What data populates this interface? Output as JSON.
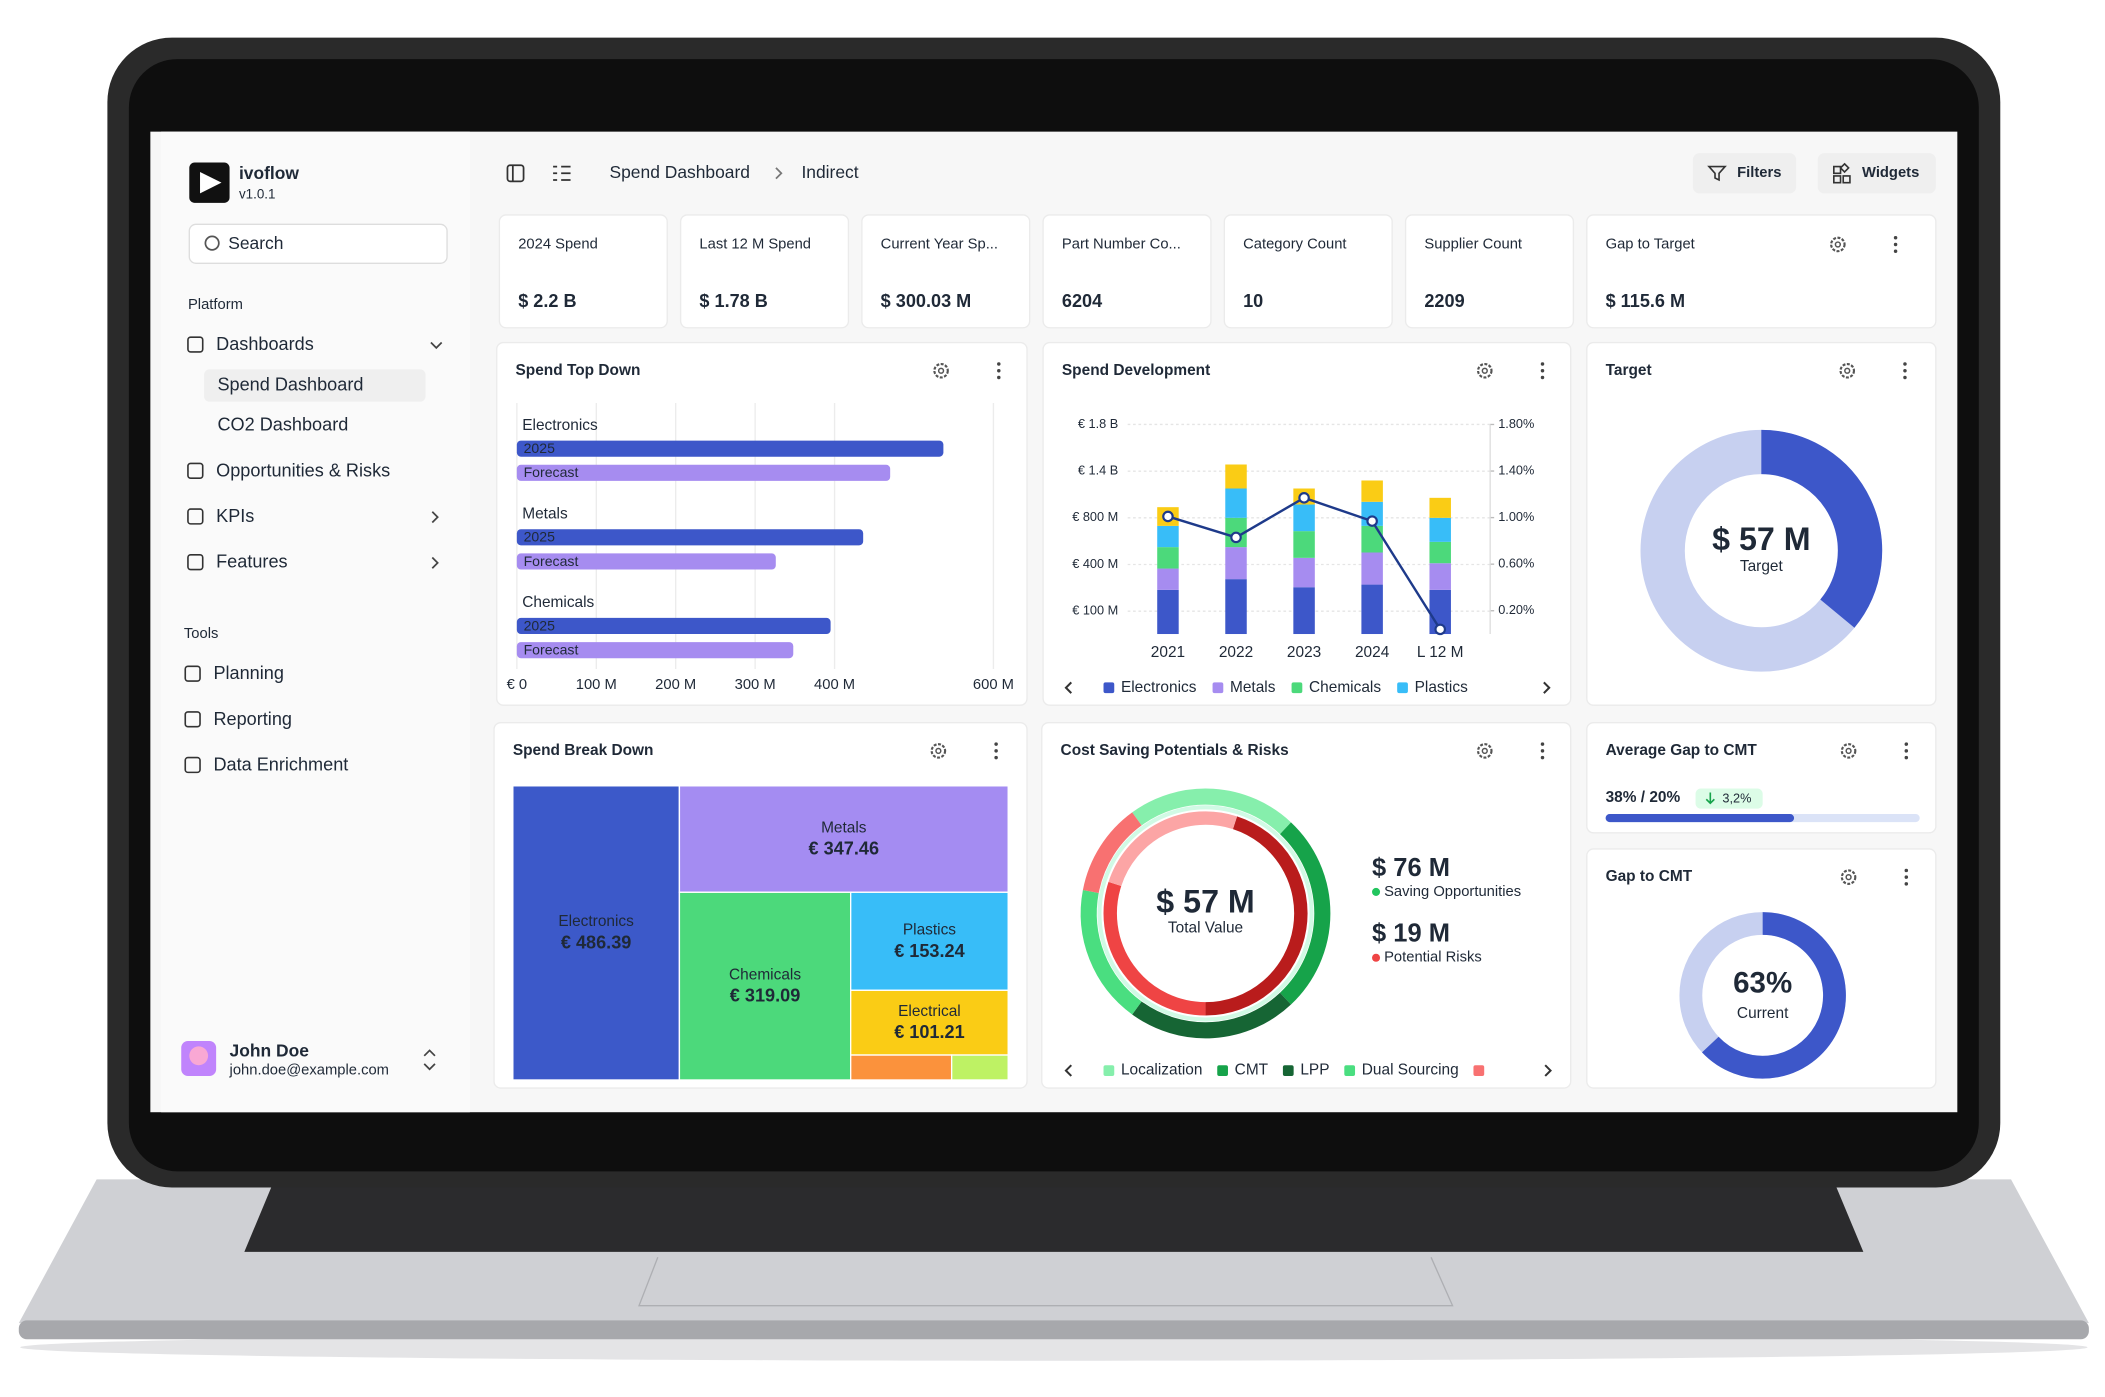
{
  "brand": {
    "name": "ivoflow",
    "version": "v1.0.1"
  },
  "sidebar": {
    "search": "Search",
    "platform_label": "Platform",
    "items": [
      "Dashboards",
      "Opportunities & Risks",
      "KPIs",
      "Features"
    ],
    "sub_items": [
      "Spend Dashboard",
      "CO2 Dashboard"
    ],
    "tools_label": "Tools",
    "tools": [
      "Planning",
      "Reporting",
      "Data Enrichment"
    ]
  },
  "user": {
    "name": "John Doe",
    "email": "john.doe@example.com"
  },
  "header": {
    "breadcrumb": [
      "Spend Dashboard",
      "Indirect"
    ],
    "buttons": [
      "Filters",
      "Widgets"
    ]
  },
  "kpis": [
    {
      "label": "2024 Spend",
      "value": "$ 2.2 B"
    },
    {
      "label": "Last 12 M Spend",
      "value": "$ 1.78 B"
    },
    {
      "label": "Current Year Sp...",
      "value": "$ 300.03 M"
    },
    {
      "label": "Part Number Co...",
      "value": "6204"
    },
    {
      "label": "Category Count",
      "value": "10"
    },
    {
      "label": "Supplier Count",
      "value": "2209"
    },
    {
      "label": "Gap to Target",
      "value": "$ 115.6 M"
    }
  ],
  "chart_data": [
    {
      "type": "hbar",
      "title": "Spend Top Down",
      "categories": [
        "Electronics",
        "Metals",
        "Chemicals"
      ],
      "series": [
        {
          "name": "2025",
          "color": "#3d57c9",
          "values": [
            537,
            436,
            395
          ]
        },
        {
          "name": "Forecast",
          "color": "#a68cf0",
          "values": [
            470,
            326,
            348
          ]
        }
      ],
      "xlim": [
        0,
        600
      ],
      "xticks": [
        {
          "value": 0,
          "label": "€ 0"
        },
        {
          "value": 100,
          "label": "100 M"
        },
        {
          "value": 200,
          "label": "200 M"
        },
        {
          "value": 300,
          "label": "300 M"
        },
        {
          "value": 400,
          "label": "400 M"
        },
        {
          "value": 600,
          "label": "600 M"
        }
      ],
      "grid": true
    },
    {
      "type": "stacked_bar_line",
      "title": "Spend Development",
      "categories": [
        "2021",
        "2022",
        "2023",
        "2024",
        "L 12 M"
      ],
      "series": [
        {
          "name": "Electronics",
          "color": "#3d57c9",
          "values": [
            237,
            306,
            254,
            271,
            237
          ]
        },
        {
          "name": "Metals",
          "color": "#a68cf0",
          "values": [
            137,
            243,
            203,
            232,
            174
          ]
        },
        {
          "name": "Chemicals",
          "color": "#4cd97b",
          "values": [
            175,
            251,
            229,
            228,
            183
          ]
        },
        {
          "name": "Plastics",
          "color": "#38bdf8",
          "values": [
            182,
            377,
            285,
            275,
            206
          ]
        },
        {
          "color": "#facc15",
          "values": [
            206,
            280,
            206,
            274,
            257
          ]
        },
        {
          "type": "line",
          "axis": "y2",
          "color": "#1e3a8a",
          "values": [
            1.01,
            0.83,
            1.17,
            0.97,
            0.04
          ]
        }
      ],
      "ylim": [
        0,
        1800
      ],
      "yticks": [
        {
          "value": 100,
          "label": "€ 100 M"
        },
        {
          "value": 400,
          "label": "€ 400 M"
        },
        {
          "value": 800,
          "label": "€ 800 M"
        },
        {
          "value": 1400,
          "label": "€ 1.4 B"
        },
        {
          "value": 1800,
          "label": "€ 1.8 B"
        }
      ],
      "y2lim": [
        0,
        1.8
      ],
      "y2ticks": [
        {
          "value": 0.2,
          "label": "0.20%"
        },
        {
          "value": 0.6,
          "label": "0.60%"
        },
        {
          "value": 1.0,
          "label": "1.00%"
        },
        {
          "value": 1.4,
          "label": "1.40%"
        },
        {
          "value": 1.8,
          "label": "1.80%"
        }
      ],
      "grid": true
    },
    {
      "type": "donut",
      "title": "Target",
      "center_label": "$ 57 M",
      "center_sublabel": "Target",
      "values": [
        36
      ],
      "colors": [
        "#3d57c9"
      ],
      "track_color": "#c7d0f0"
    },
    {
      "type": "treemap",
      "title": "Spend Break Down",
      "categories": [
        "Electronics",
        "Metals",
        "Chemicals",
        "Plastics",
        "Electrical",
        null,
        null
      ],
      "values": [
        486.39,
        347.46,
        319.09,
        153.24,
        101.21,
        25,
        14
      ],
      "value_labels": [
        "€ 486.39",
        "€ 347.46",
        "€ 319.09",
        "€ 153.24",
        "€ 101.21",
        null,
        null
      ],
      "colors": [
        "#3c59c9",
        "#a48cf2",
        "#4cd97b",
        "#38bdf8",
        "#facc15",
        "#fb923c",
        "#bef264"
      ]
    },
    {
      "type": "rings",
      "title": "Cost Saving Potentials & Risks",
      "center_label": "$ 57 M",
      "center_sublabel": "Total Value",
      "categories": [
        "Localization",
        "CMT",
        "LPP",
        "Dual Sourcing",
        null
      ],
      "values": [
        22,
        26,
        22,
        18,
        12
      ],
      "colors": [
        "#86efac",
        "#16a34a",
        "#166534",
        "#4ade80",
        "#f87171"
      ],
      "inner_ring": {
        "values": [
          45,
          30,
          25
        ],
        "colors": [
          "#b91c1c",
          "#ef4444",
          "#fca5a5"
        ]
      },
      "stats": [
        {
          "value": "$ 76 M",
          "label": "Saving Opportunities",
          "color": "#22c55e"
        },
        {
          "value": "$ 19 M",
          "label": "Potential Risks",
          "color": "#ef4444"
        }
      ]
    },
    {
      "type": "progress",
      "title": "Average Gap to CMT",
      "label": "38% / 20%",
      "delta": "3,2%",
      "values": [
        60
      ],
      "color": "#3d57c9",
      "track_color": "#dbe3f7"
    },
    {
      "type": "donut",
      "title": "Gap to CMT",
      "values": [
        63
      ],
      "value_labels": [
        "63%"
      ],
      "center_sublabel": "Current",
      "colors": [
        "#3d57c9"
      ],
      "track_color": "#c7d0f0"
    }
  ]
}
